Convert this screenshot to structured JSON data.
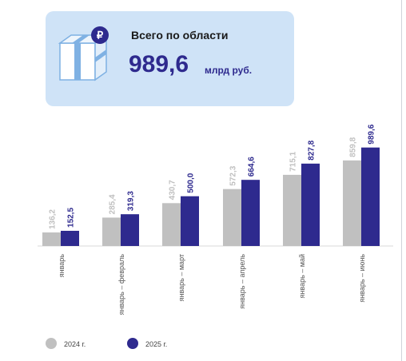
{
  "card": {
    "title": "Всего по области",
    "value": "989,6",
    "unit": "млрд руб.",
    "icon": "gift-ruble-icon"
  },
  "chart_data": {
    "type": "bar",
    "categories": [
      "январь",
      "январь – февраль",
      "январь – март",
      "январь – апрель",
      "январь – май",
      "январь – июнь"
    ],
    "series": [
      {
        "name": "2024 г.",
        "color": "#c0c0c0",
        "values": [
          136.2,
          285.4,
          430.7,
          572.3,
          715.1,
          859.8
        ],
        "labels": [
          "136,2",
          "285,4",
          "430,7",
          "572,3",
          "715,1",
          "859,8"
        ]
      },
      {
        "name": "2025 г.",
        "color": "#2e2a8e",
        "values": [
          152.5,
          319.3,
          500.0,
          664.6,
          827.8,
          989.6
        ],
        "labels": [
          "152,5",
          "319,3",
          "500,0",
          "664,6",
          "827,8",
          "989,6"
        ]
      }
    ],
    "ylim": [
      0,
      1000
    ],
    "grid": false,
    "legend_position": "bottom-left"
  }
}
